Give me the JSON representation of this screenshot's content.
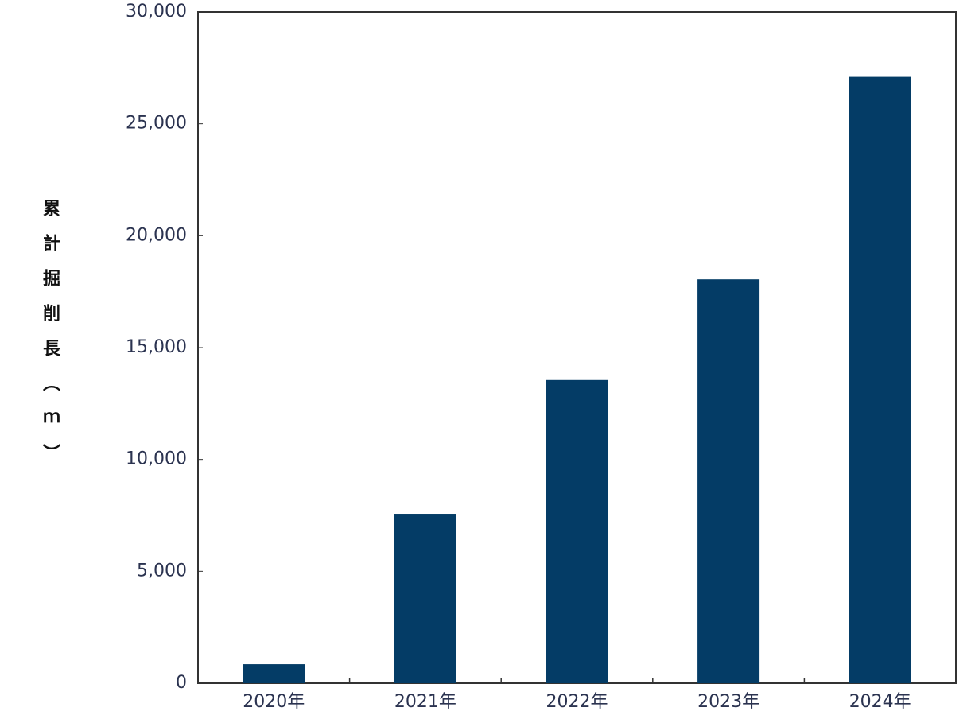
{
  "chart_data": {
    "type": "bar",
    "y_label": "累計掘削長（ｍ）",
    "categories": [
      "2020年",
      "2021年",
      "2022年",
      "2023年",
      "2024年"
    ],
    "values": [
      850,
      7570,
      13550,
      18050,
      27100
    ],
    "color": "#043c66",
    "ylim": [
      0,
      30000
    ],
    "yticks": [
      0,
      {
        "value": 5000,
        "label": "5,000"
      },
      {
        "value": 10000,
        "label": "10,000"
      },
      {
        "value": 15000,
        "label": "15,000"
      },
      {
        "value": 20000,
        "label": "20,000"
      },
      {
        "value": 25000,
        "label": "25,000"
      },
      {
        "value": 30000,
        "label": "30,000"
      }
    ],
    "grid": false
  }
}
